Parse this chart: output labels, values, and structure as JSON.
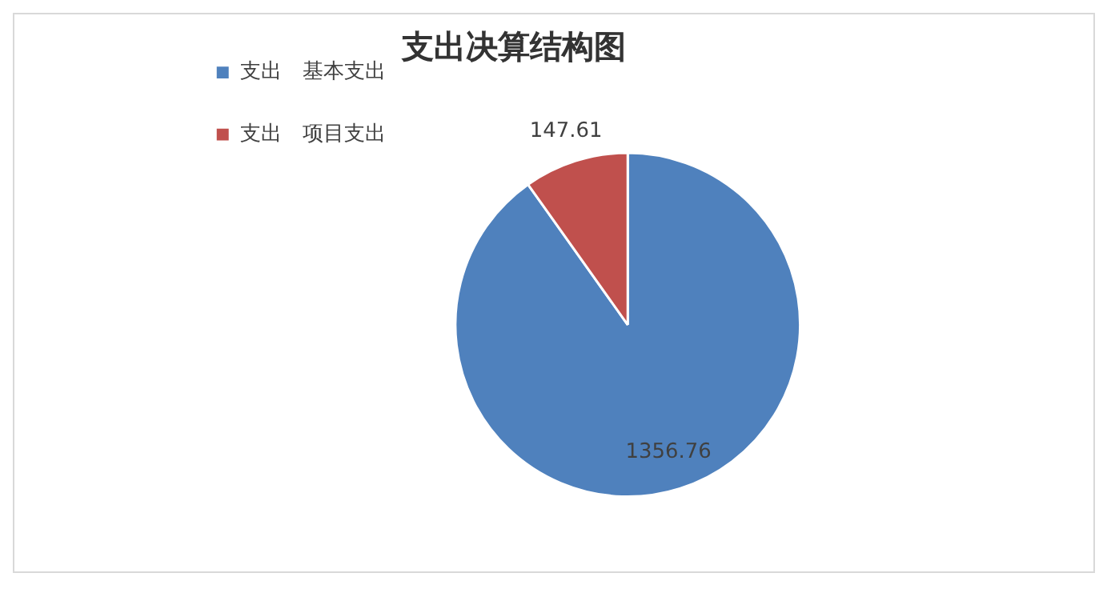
{
  "chart_data": {
    "type": "pie",
    "title": "支出决算结构图",
    "categories": [
      "支出　基本支出",
      "支出　项目支出"
    ],
    "values": [
      1356.76,
      147.61
    ],
    "colors": [
      "#4f81bd",
      "#c0504d"
    ],
    "data_labels": true,
    "legend": "top left"
  }
}
